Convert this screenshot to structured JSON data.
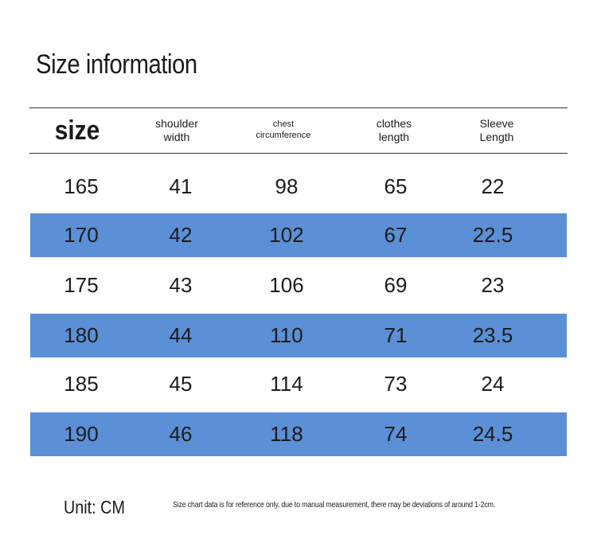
{
  "title": "Size information",
  "table": {
    "headers": [
      "size",
      "shoulder\nwidth",
      "chest\ncircumference",
      "clothes\nlength",
      "Sleeve\nLength"
    ],
    "rows": [
      [
        "165",
        "41",
        "98",
        "65",
        "22"
      ],
      [
        "170",
        "42",
        "102",
        "67",
        "22.5"
      ],
      [
        "175",
        "43",
        "106",
        "69",
        "23"
      ],
      [
        "180",
        "44",
        "110",
        "71",
        "23.5"
      ],
      [
        "185",
        "45",
        "114",
        "73",
        "24"
      ],
      [
        "190",
        "46",
        "118",
        "74",
        "24.5"
      ]
    ],
    "stripe_color": "#5b8fd6"
  },
  "footer": {
    "unit": "Unit: CM",
    "note": "Size chart data is for reference only, due to manual measurement, there may be deviations of around 1-2cm."
  }
}
